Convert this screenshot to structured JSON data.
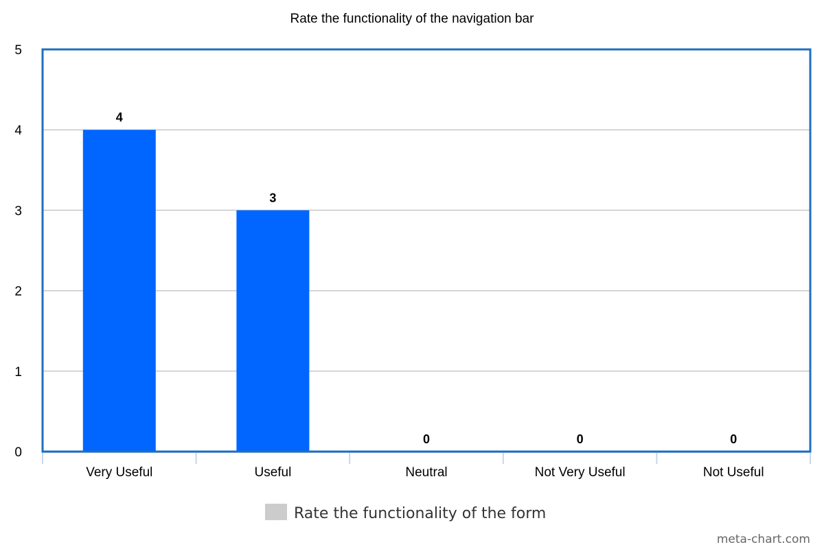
{
  "chart_data": {
    "type": "bar",
    "title": "Rate the functionality of the navigation bar",
    "categories": [
      "Very Useful",
      "Useful",
      "Neutral",
      "Not Very Useful",
      "Not Useful"
    ],
    "series": [
      {
        "name": "Rate the functionality of the form",
        "values": [
          4,
          3,
          0,
          0,
          0
        ]
      }
    ],
    "xlabel": "",
    "ylabel": "",
    "ylim": [
      0,
      5
    ],
    "yticks": [
      "0",
      "1",
      "2",
      "3",
      "4",
      "5"
    ],
    "grid": true,
    "legend": "bottom-center",
    "bar_color": "#0066ff",
    "legend_swatch_color": "#cccccc",
    "frame_color": "#1f6fbf"
  },
  "watermark": "meta-chart.com"
}
